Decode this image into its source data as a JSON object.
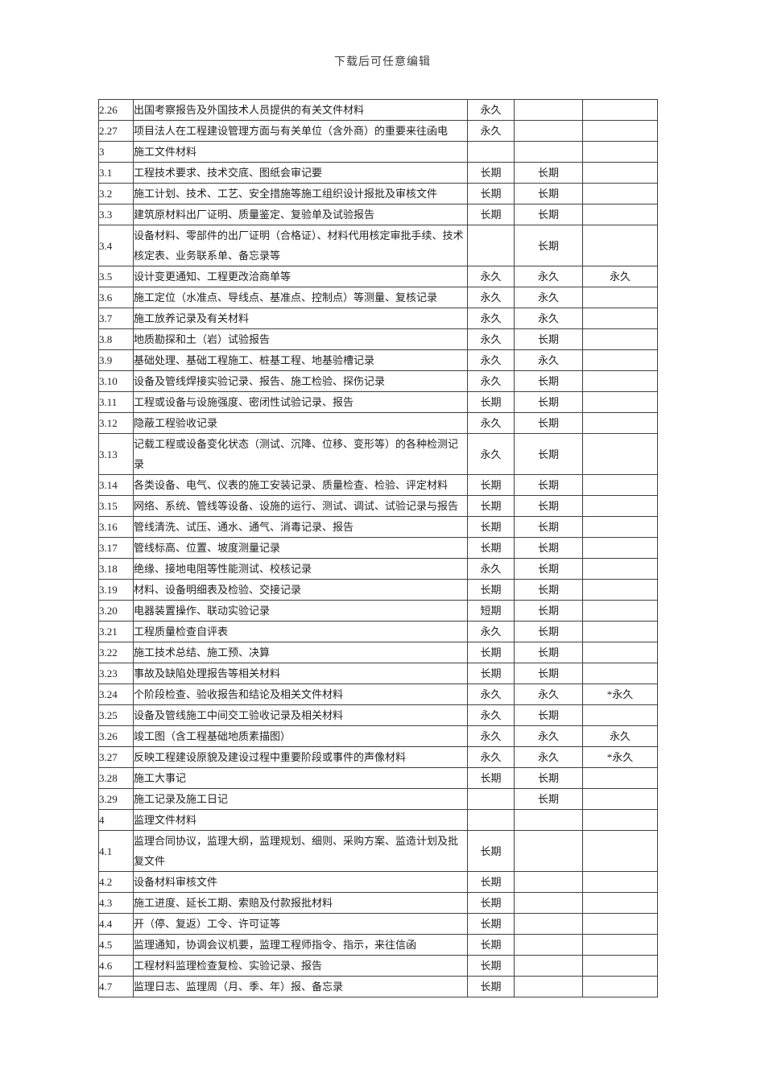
{
  "page": {
    "header_note": "下载后可任意编辑"
  },
  "table": {
    "rows": [
      {
        "no": "2.26",
        "desc": "出国考察报告及外国技术人员提供的有关文件材料",
        "r1": "永久",
        "r2": "",
        "r3": ""
      },
      {
        "no": "2.27",
        "desc": "项目法人在工程建设管理方面与有关单位（含外商）的重要来往函电",
        "r1": "永久",
        "r2": "",
        "r3": ""
      },
      {
        "no": "3",
        "desc": "施工文件材料",
        "r1": "",
        "r2": "",
        "r3": ""
      },
      {
        "no": "3.1",
        "desc": "工程技术要求、技术交底、图纸会审记要",
        "r1": "长期",
        "r2": "长期",
        "r3": ""
      },
      {
        "no": "3.2",
        "desc": "施工计划、技术、工艺、安全措施等施工组织设计报批及审核文件",
        "r1": "长期",
        "r2": "长期",
        "r3": ""
      },
      {
        "no": "3.3",
        "desc": "建筑原材料出厂证明、质量鉴定、复验单及试验报告",
        "r1": "长期",
        "r2": "长期",
        "r3": ""
      },
      {
        "no": "3.4",
        "desc": "设备材料、零部件的出厂证明（合格证）、材料代用核定审批手续、技术核定表、业务联系单、备忘录等",
        "r1": "",
        "r2": "长期",
        "r3": ""
      },
      {
        "no": "3.5",
        "desc": "设计变更通知、工程更改洽商单等",
        "r1": "永久",
        "r2": "永久",
        "r3": "永久"
      },
      {
        "no": "3.6",
        "desc": "施工定位（水准点、导线点、基准点、控制点）等测量、复核记录",
        "r1": "永久",
        "r2": "永久",
        "r3": ""
      },
      {
        "no": "3.7",
        "desc": "施工放养记录及有关材料",
        "r1": "永久",
        "r2": "永久",
        "r3": ""
      },
      {
        "no": "3.8",
        "desc": "地质勘探和土（岩）试验报告",
        "r1": "永久",
        "r2": "长期",
        "r3": ""
      },
      {
        "no": "3.9",
        "desc": "基础处理、基础工程施工、桩基工程、地基验槽记录",
        "r1": "永久",
        "r2": "永久",
        "r3": ""
      },
      {
        "no": "3.10",
        "desc": "设备及管线焊接实验记录、报告、施工检验、探伤记录",
        "r1": "永久",
        "r2": "长期",
        "r3": ""
      },
      {
        "no": "3.11",
        "desc": "工程或设备与设施强度、密闭性试验记录、报告",
        "r1": "长期",
        "r2": "长期",
        "r3": ""
      },
      {
        "no": "3.12",
        "desc": "隐蔽工程验收记录",
        "r1": "永久",
        "r2": "长期",
        "r3": ""
      },
      {
        "no": "3.13",
        "desc": "记载工程或设备变化状态（测试、沉降、位移、变形等）的各种检测记录",
        "r1": "永久",
        "r2": "长期",
        "r3": ""
      },
      {
        "no": "3.14",
        "desc": "各类设备、电气、仪表的施工安装记录、质量检查、检验、评定材料",
        "r1": "长期",
        "r2": "长期",
        "r3": ""
      },
      {
        "no": "3.15",
        "desc": "网络、系统、管线等设备、设施的运行、测试、调试、试验记录与报告",
        "r1": "长期",
        "r2": "长期",
        "r3": ""
      },
      {
        "no": "3.16",
        "desc": "管线清洗、试压、通水、通气、消毒记录、报告",
        "r1": "长期",
        "r2": "长期",
        "r3": ""
      },
      {
        "no": "3.17",
        "desc": "管线标高、位置、坡度测量记录",
        "r1": "长期",
        "r2": "长期",
        "r3": ""
      },
      {
        "no": "3.18",
        "desc": "绝缘、接地电阻等性能测试、校核记录",
        "r1": "永久",
        "r2": "长期",
        "r3": ""
      },
      {
        "no": "3.19",
        "desc": "材料、设备明细表及检验、交接记录",
        "r1": "长期",
        "r2": "长期",
        "r3": ""
      },
      {
        "no": "3.20",
        "desc": "电器装置操作、联动实验记录",
        "r1": "短期",
        "r2": "长期",
        "r3": ""
      },
      {
        "no": "3.21",
        "desc": "工程质量检查自评表",
        "r1": "永久",
        "r2": "长期",
        "r3": ""
      },
      {
        "no": "3.22",
        "desc": "施工技术总结、施工预、决算",
        "r1": "长期",
        "r2": "长期",
        "r3": ""
      },
      {
        "no": "3.23",
        "desc": "事故及缺陷处理报告等相关材料",
        "r1": "长期",
        "r2": "长期",
        "r3": ""
      },
      {
        "no": "3.24",
        "desc": "个阶段检查、验收报告和结论及相关文件材料",
        "r1": "永久",
        "r2": "永久",
        "r3": "*永久"
      },
      {
        "no": "3.25",
        "desc": "设备及管线施工中间交工验收记录及相关材料",
        "r1": "永久",
        "r2": "长期",
        "r3": ""
      },
      {
        "no": "3.26",
        "desc": "竣工图（含工程基础地质素描图）",
        "r1": "永久",
        "r2": "永久",
        "r3": "永久"
      },
      {
        "no": "3.27",
        "desc": "反映工程建设原貌及建设过程中重要阶段或事件的声像材料",
        "r1": "永久",
        "r2": "永久",
        "r3": "*永久"
      },
      {
        "no": "3.28",
        "desc": "施工大事记",
        "r1": "长期",
        "r2": "长期",
        "r3": ""
      },
      {
        "no": "3.29",
        "desc": "施工记录及施工日记",
        "r1": "",
        "r2": "长期",
        "r3": ""
      },
      {
        "no": "4",
        "desc": "监理文件材料",
        "r1": "",
        "r2": "",
        "r3": ""
      },
      {
        "no": "4.1",
        "desc": "监理合同协议，监理大纲，监理规划、细则、采购方案、监造计划及批复文件",
        "r1": "长期",
        "r2": "",
        "r3": ""
      },
      {
        "no": "4.2",
        "desc": "设备材料审核文件",
        "r1": "长期",
        "r2": "",
        "r3": ""
      },
      {
        "no": "4.3",
        "desc": "施工进度、延长工期、索赔及付款报批材料",
        "r1": "长期",
        "r2": "",
        "r3": ""
      },
      {
        "no": "4.4",
        "desc": "开（停、复返）工令、许可证等",
        "r1": "长期",
        "r2": "",
        "r3": ""
      },
      {
        "no": "4.5",
        "desc": "监理通知，协调会议机要，监理工程师指令、指示，来往信函",
        "r1": "长期",
        "r2": "",
        "r3": ""
      },
      {
        "no": "4.6",
        "desc": "工程材料监理检查复检、实验记录、报告",
        "r1": "长期",
        "r2": "",
        "r3": ""
      },
      {
        "no": "4.7",
        "desc": "监理日志、监理周（月、季、年）报、备忘录",
        "r1": "长期",
        "r2": "",
        "r3": ""
      }
    ]
  }
}
